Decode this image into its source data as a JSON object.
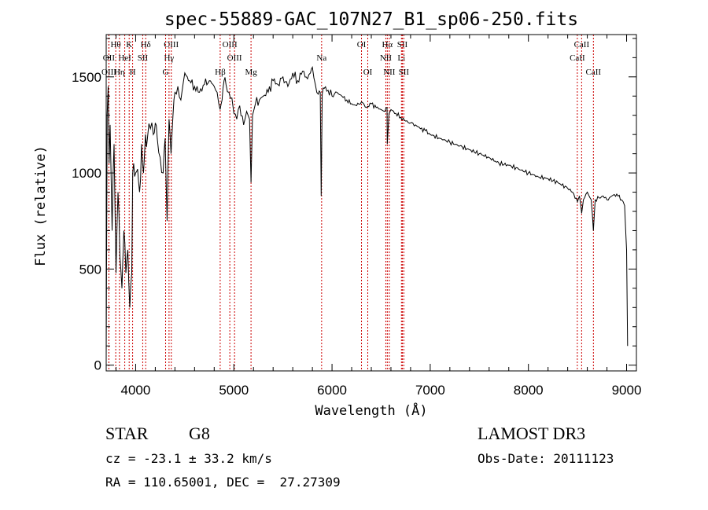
{
  "chart_data": {
    "type": "line",
    "title": "spec-55889-GAC_107N27_B1_sp06-250.fits",
    "xlabel": "Wavelength (Å)",
    "ylabel": "Flux (relative)",
    "xlim": [
      3700,
      9100
    ],
    "ylim": [
      -30,
      1720
    ],
    "x_ticks": [
      4000,
      5000,
      6000,
      7000,
      8000,
      9000
    ],
    "y_ticks": [
      0,
      500,
      1000,
      1500
    ],
    "grid": false,
    "series": [
      {
        "name": "Flux",
        "x": [
          3700,
          3710,
          3720,
          3730,
          3740,
          3760,
          3780,
          3800,
          3820,
          3840,
          3860,
          3880,
          3900,
          3920,
          3940,
          3960,
          3970,
          3980,
          4000,
          4020,
          4040,
          4060,
          4080,
          4100,
          4120,
          4150,
          4180,
          4200,
          4220,
          4250,
          4280,
          4300,
          4320,
          4340,
          4360,
          4380,
          4400,
          4430,
          4460,
          4500,
          4550,
          4600,
          4650,
          4700,
          4750,
          4800,
          4830,
          4860,
          4880,
          4900,
          4920,
          4950,
          4980,
          5000,
          5030,
          5060,
          5100,
          5130,
          5160,
          5175,
          5190,
          5220,
          5260,
          5300,
          5350,
          5400,
          5450,
          5500,
          5550,
          5600,
          5650,
          5700,
          5750,
          5780,
          5800,
          5830,
          5860,
          5880,
          5890,
          5900,
          5920,
          5960,
          6000,
          6050,
          6100,
          6150,
          6200,
          6250,
          6300,
          6350,
          6400,
          6450,
          6500,
          6540,
          6560,
          6563,
          6580,
          6600,
          6650,
          6700,
          6750,
          6800,
          6850,
          6900,
          6950,
          7000,
          7100,
          7200,
          7300,
          7400,
          7500,
          7600,
          7700,
          7800,
          7900,
          8000,
          8100,
          8200,
          8300,
          8400,
          8450,
          8500,
          8520,
          8542,
          8560,
          8600,
          8640,
          8662,
          8680,
          8720,
          8760,
          8800,
          8850,
          8900,
          8950,
          8980,
          9000,
          9010
        ],
        "values": [
          30,
          1300,
          1450,
          1050,
          1250,
          700,
          1150,
          480,
          900,
          560,
          400,
          700,
          480,
          600,
          300,
          480,
          1000,
          1050,
          1000,
          1020,
          900,
          1150,
          1000,
          1200,
          1180,
          1230,
          1200,
          1260,
          1180,
          1080,
          1000,
          1180,
          750,
          1280,
          1100,
          1300,
          1420,
          1450,
          1380,
          1520,
          1480,
          1450,
          1420,
          1460,
          1480,
          1450,
          1420,
          1330,
          1380,
          1480,
          1460,
          1420,
          1390,
          1310,
          1280,
          1350,
          1250,
          1320,
          1280,
          950,
          1300,
          1360,
          1380,
          1400,
          1420,
          1480,
          1460,
          1500,
          1450,
          1520,
          1480,
          1530,
          1490,
          1520,
          1550,
          1460,
          1410,
          1420,
          880,
          1410,
          1440,
          1430,
          1400,
          1420,
          1400,
          1380,
          1360,
          1350,
          1370,
          1340,
          1360,
          1340,
          1330,
          1320,
          1340,
          1150,
          1310,
          1330,
          1310,
          1290,
          1270,
          1260,
          1250,
          1230,
          1220,
          1200,
          1180,
          1160,
          1140,
          1120,
          1100,
          1080,
          1050,
          1040,
          1020,
          1000,
          980,
          970,
          950,
          920,
          900,
          850,
          880,
          790,
          860,
          900,
          860,
          700,
          860,
          870,
          880,
          860,
          880,
          890,
          860,
          830,
          600,
          100
        ],
        "color": "#000000"
      }
    ],
    "emission_lines": [
      {
        "name": "Hθ",
        "wavelength": 3797,
        "row": 0
      },
      {
        "name": "OII",
        "wavelength": 3727,
        "row": 1
      },
      {
        "name": "OIII",
        "wavelength": 3728,
        "row": 2
      },
      {
        "name": "K",
        "wavelength": 3934,
        "row": 0
      },
      {
        "name": "HeI",
        "wavelength": 3889,
        "row": 1
      },
      {
        "name": "Hη",
        "wavelength": 3835,
        "row": 2
      },
      {
        "name": "Hδ",
        "wavelength": 4102,
        "row": 0
      },
      {
        "name": "SII",
        "wavelength": 4072,
        "row": 1
      },
      {
        "name": "H",
        "wavelength": 3969,
        "row": 2
      },
      {
        "name": "OIII",
        "wavelength": 4363,
        "row": 0
      },
      {
        "name": "Hγ",
        "wavelength": 4340,
        "row": 1
      },
      {
        "name": "G",
        "wavelength": 4305,
        "row": 2
      },
      {
        "name": "OIII",
        "wavelength": 4959,
        "row": 0
      },
      {
        "name": "OIII",
        "wavelength": 5007,
        "row": 1
      },
      {
        "name": "Hβ",
        "wavelength": 4861,
        "row": 2
      },
      {
        "name": "Mg",
        "wavelength": 5175,
        "row": 2
      },
      {
        "name": "Na",
        "wavelength": 5894,
        "row": 1
      },
      {
        "name": "OI",
        "wavelength": 6300,
        "row": 0
      },
      {
        "name": "OI",
        "wavelength": 6364,
        "row": 2
      },
      {
        "name": "Hα",
        "wavelength": 6563,
        "row": 0
      },
      {
        "name": "SII",
        "wavelength": 6716,
        "row": 0
      },
      {
        "name": "NII",
        "wavelength": 6548,
        "row": 1
      },
      {
        "name": "Li",
        "wavelength": 6707,
        "row": 1
      },
      {
        "name": "NII",
        "wavelength": 6583,
        "row": 2
      },
      {
        "name": "SII",
        "wavelength": 6731,
        "row": 2
      },
      {
        "name": "CaII",
        "wavelength": 8542,
        "row": 0
      },
      {
        "name": "CaII",
        "wavelength": 8498,
        "row": 1
      },
      {
        "name": "CaII",
        "wavelength": 8662,
        "row": 2
      }
    ]
  },
  "info": {
    "class": "STAR",
    "subclass": "G8",
    "survey": "LAMOST DR3",
    "cz": "cz = -23.1 ± 33.2 km/s",
    "obs_date": "Obs-Date: 20111123",
    "coords": "RA = 110.65001, DEC =  27.27309"
  }
}
